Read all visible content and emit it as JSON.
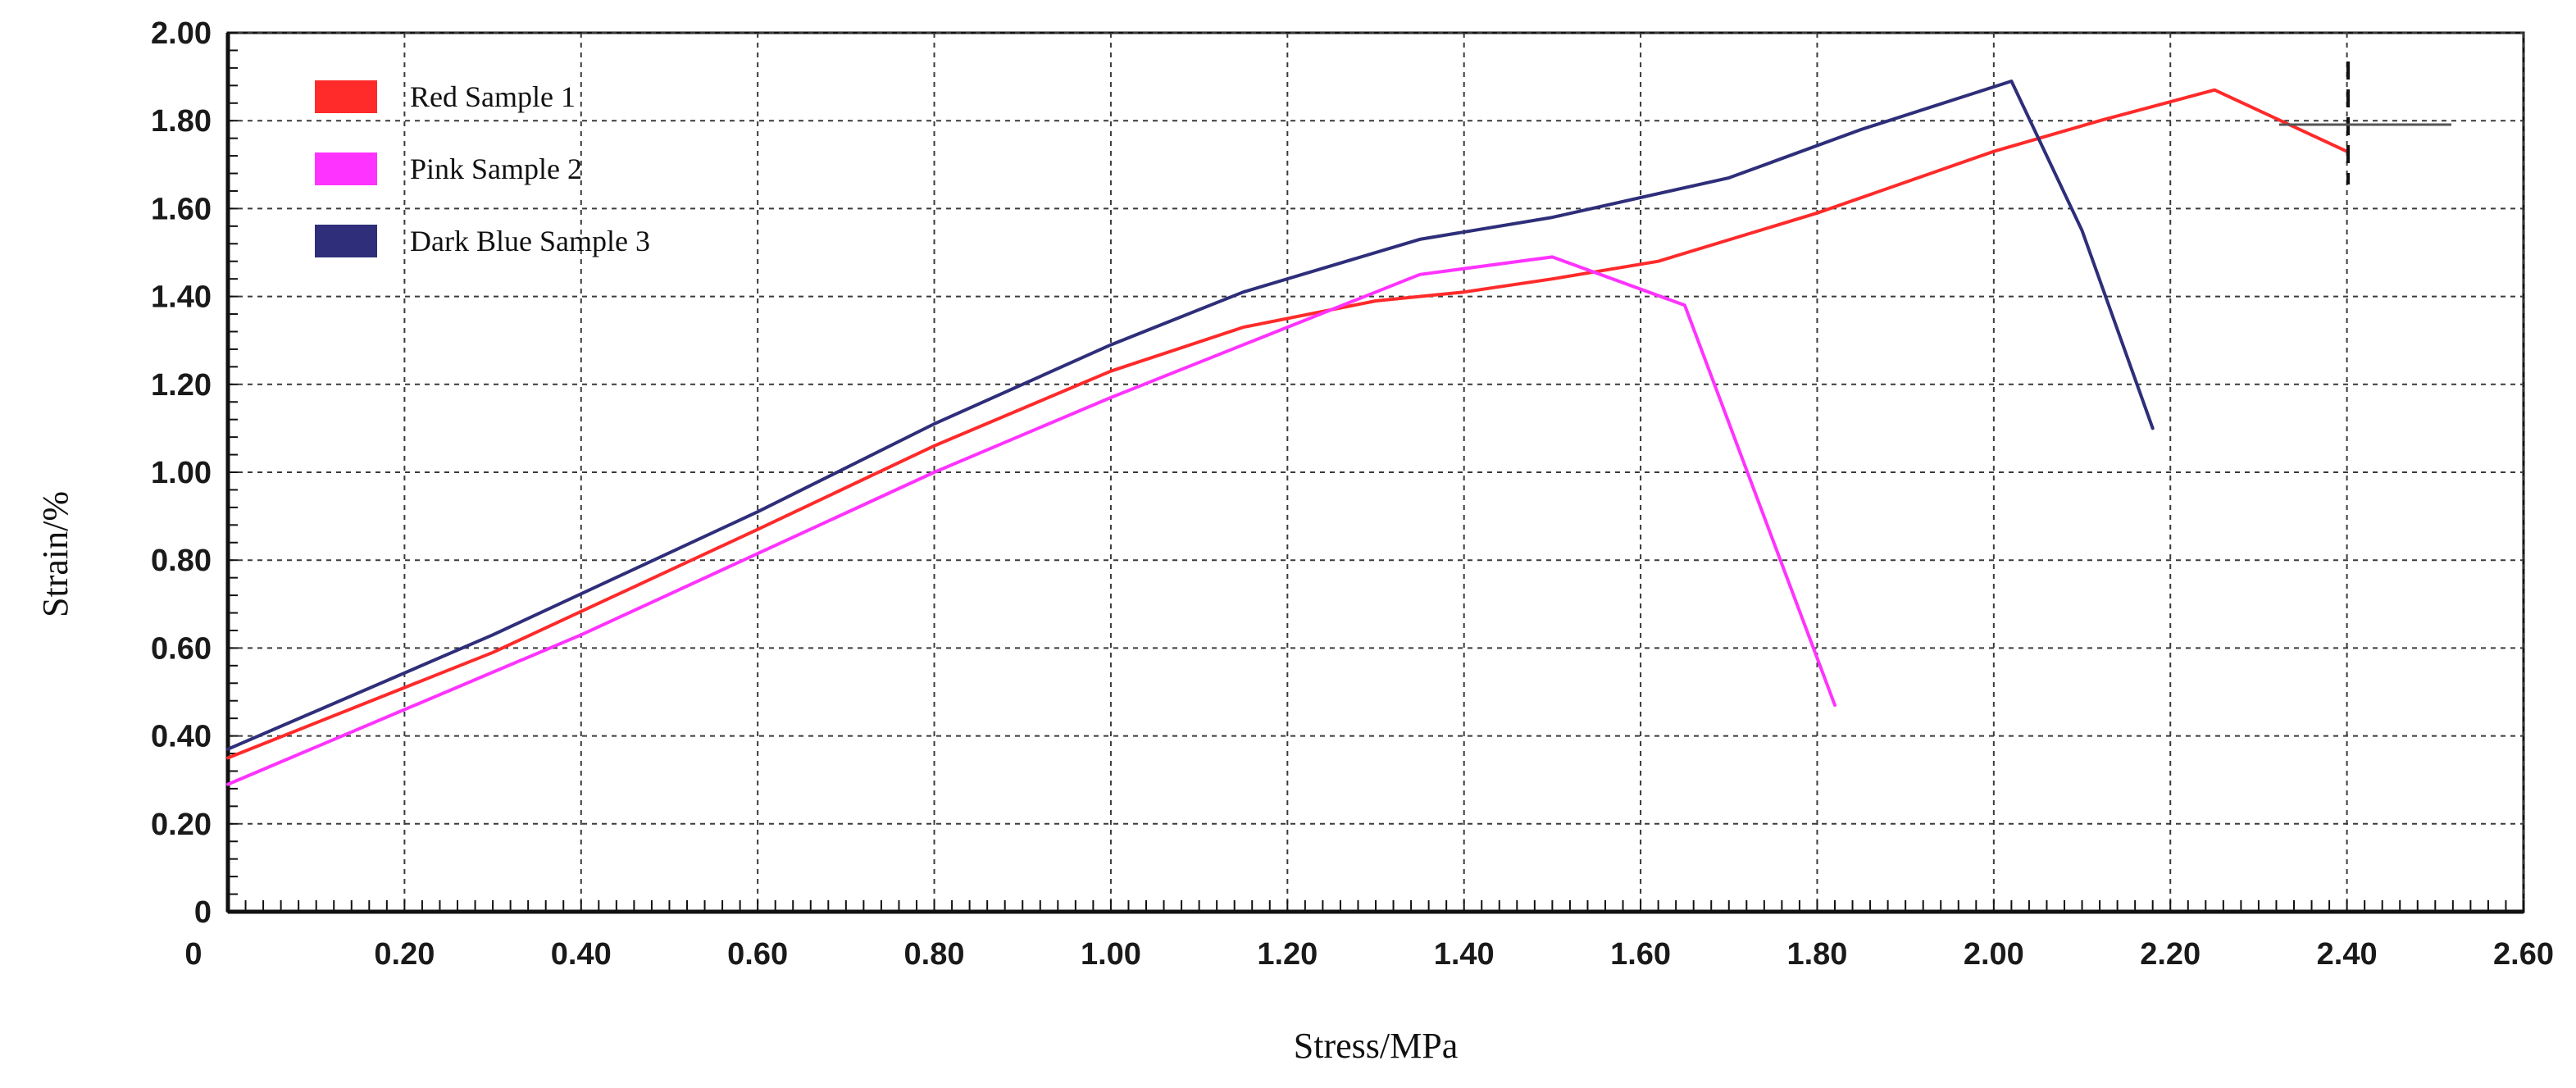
{
  "chart_data": {
    "type": "line",
    "xlabel": "Stress/MPa",
    "ylabel": "Strain/%",
    "xlim": [
      0,
      2.6
    ],
    "ylim": [
      0,
      2.0
    ],
    "x_ticks": [
      "0",
      "0.20",
      "0.40",
      "0.60",
      "0.80",
      "1.00",
      "1.20",
      "1.40",
      "1.60",
      "1.80",
      "2.00",
      "2.20",
      "2.40",
      "2.60"
    ],
    "y_ticks": [
      "0",
      "0.20",
      "0.40",
      "0.60",
      "0.80",
      "1.00",
      "1.20",
      "1.40",
      "1.60",
      "1.80",
      "2.00"
    ],
    "grid": true,
    "legend_position": "top-left",
    "series": [
      {
        "name": "Red Sample 1",
        "color": "#ff2a2a",
        "points": [
          [
            0.0,
            0.35
          ],
          [
            0.3,
            0.59
          ],
          [
            0.6,
            0.87
          ],
          [
            0.8,
            1.06
          ],
          [
            1.0,
            1.23
          ],
          [
            1.15,
            1.33
          ],
          [
            1.3,
            1.39
          ],
          [
            1.4,
            1.41
          ],
          [
            1.5,
            1.44
          ],
          [
            1.62,
            1.48
          ],
          [
            1.8,
            1.59
          ],
          [
            2.0,
            1.73
          ],
          [
            2.12,
            1.8
          ],
          [
            2.25,
            1.87
          ],
          [
            2.4,
            1.73
          ]
        ]
      },
      {
        "name": "Pink Sample 2",
        "color": "#ff33ff",
        "points": [
          [
            0.0,
            0.29
          ],
          [
            0.4,
            0.63
          ],
          [
            0.8,
            1.0
          ],
          [
            1.0,
            1.17
          ],
          [
            1.2,
            1.33
          ],
          [
            1.35,
            1.45
          ],
          [
            1.5,
            1.49
          ],
          [
            1.65,
            1.38
          ],
          [
            1.82,
            0.47
          ]
        ]
      },
      {
        "name": "Dark Blue Sample 3",
        "color": "#2e2e7a",
        "points": [
          [
            0.0,
            0.37
          ],
          [
            0.3,
            0.63
          ],
          [
            0.6,
            0.91
          ],
          [
            0.8,
            1.11
          ],
          [
            1.0,
            1.29
          ],
          [
            1.15,
            1.41
          ],
          [
            1.35,
            1.53
          ],
          [
            1.5,
            1.58
          ],
          [
            1.7,
            1.67
          ],
          [
            1.85,
            1.78
          ],
          [
            2.02,
            1.89
          ],
          [
            2.1,
            1.55
          ],
          [
            2.18,
            1.1
          ]
        ]
      }
    ]
  }
}
